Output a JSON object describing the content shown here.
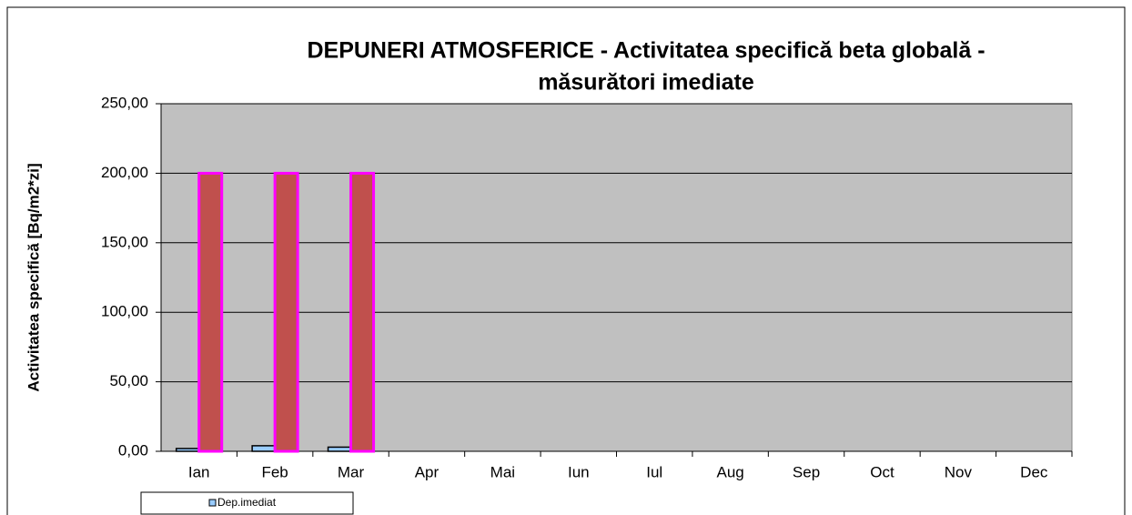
{
  "chart_data": {
    "type": "bar",
    "title": [
      "DEPUNERI ATMOSFERICE - Activitatea specifică beta globală -",
      "măsurători imediate"
    ],
    "y_label": "Activitatea specifică  [Bq/m2*zi]",
    "categories": [
      "Ian",
      "Feb",
      "Mar",
      "Apr",
      "Mai",
      "Iun",
      "Iul",
      "Aug",
      "Sep",
      "Oct",
      "Nov",
      "Dec"
    ],
    "series": [
      {
        "name": "Dep.imediat",
        "color": "#99ccff",
        "edge": "#000000",
        "values": [
          2,
          4,
          3,
          null,
          null,
          null,
          null,
          null,
          null,
          null,
          null,
          null
        ]
      },
      {
        "color": "#c0504d",
        "edge": "#ff00ff",
        "values": [
          200,
          200,
          200,
          null,
          null,
          null,
          null,
          null,
          null,
          null,
          null,
          null
        ]
      }
    ],
    "ylim": [
      0,
      250
    ],
    "yticks": [
      {
        "value": 0,
        "label": "0,00"
      },
      {
        "value": 50,
        "label": "50,00"
      },
      {
        "value": 100,
        "label": "100,00"
      },
      {
        "value": 150,
        "label": "150,00"
      },
      {
        "value": 200,
        "label": "200,00"
      },
      {
        "value": 250,
        "label": "250,00"
      }
    ],
    "grid": true,
    "plot_background": "#c0c0c0"
  }
}
